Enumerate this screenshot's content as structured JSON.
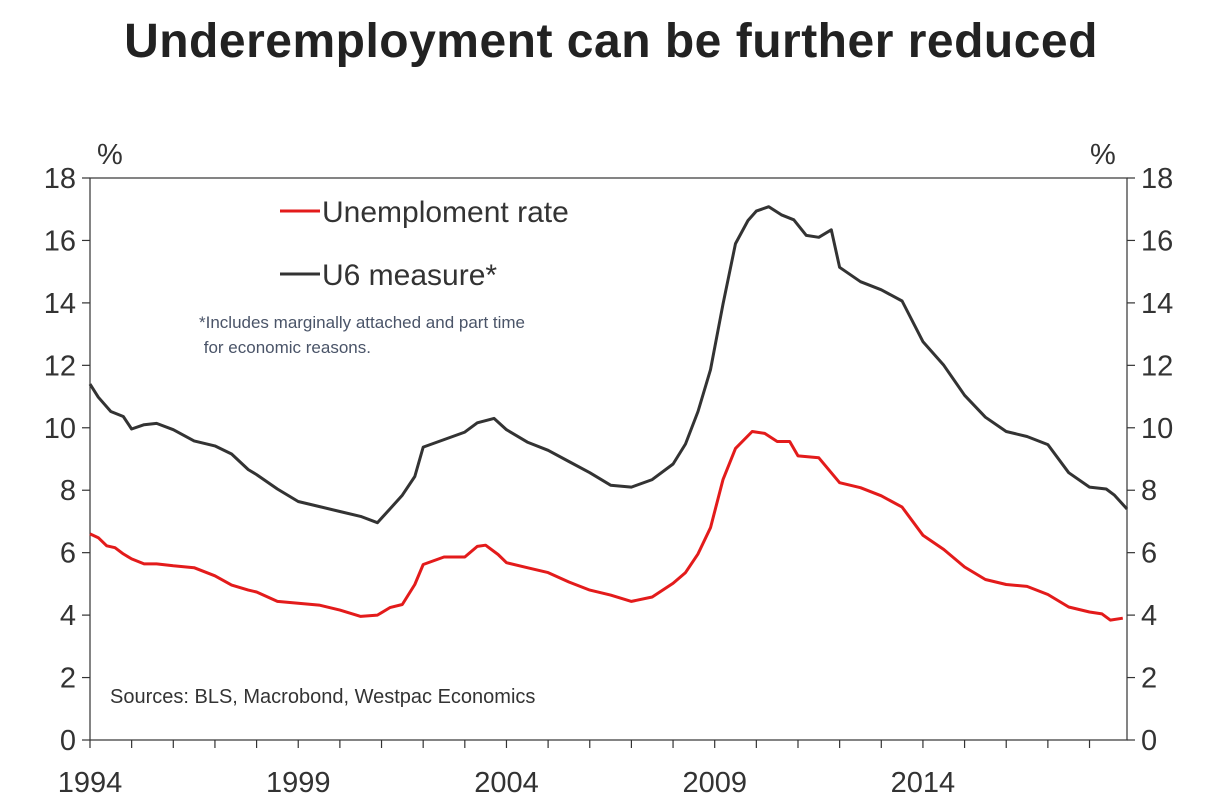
{
  "chart_data": {
    "type": "line",
    "title": "Underemployment can be further reduced",
    "y_unit_left": "%",
    "y_unit_right": "%",
    "ylim": [
      0,
      18
    ],
    "yticks": [
      0,
      2,
      4,
      6,
      8,
      10,
      12,
      14,
      16,
      18
    ],
    "xlim": [
      1994.0,
      2018.9
    ],
    "xticks": [
      1994,
      1999,
      2004,
      2009,
      2014
    ],
    "legend_position": "top-left",
    "note_lines": [
      "*Includes marginally attached and part time",
      " for economic reasons."
    ],
    "source": "Sources: BLS, Macrobond, Westpac Economics",
    "colors": {
      "unemployment": "#e31b1b",
      "u6": "#333333",
      "axis": "#333333"
    },
    "series": [
      {
        "name": "Unemploment rate",
        "key": "unemployment",
        "points": [
          [
            1994.0,
            6.6
          ],
          [
            1994.2,
            6.5
          ],
          [
            1994.4,
            6.2
          ],
          [
            1994.6,
            6.1
          ],
          [
            1994.8,
            6.0
          ],
          [
            1995.0,
            5.8
          ],
          [
            1995.3,
            5.6
          ],
          [
            1995.6,
            5.7
          ],
          [
            1996.0,
            5.6
          ],
          [
            1996.5,
            5.5
          ],
          [
            1997.0,
            5.2
          ],
          [
            1997.4,
            5.0
          ],
          [
            1997.8,
            4.8
          ],
          [
            1998.0,
            4.7
          ],
          [
            1998.5,
            4.5
          ],
          [
            1999.0,
            4.4
          ],
          [
            1999.5,
            4.3
          ],
          [
            2000.0,
            4.1
          ],
          [
            2000.5,
            4.0
          ],
          [
            2000.9,
            4.0
          ],
          [
            2001.2,
            4.2
          ],
          [
            2001.5,
            4.4
          ],
          [
            2001.8,
            5.0
          ],
          [
            2002.0,
            5.6
          ],
          [
            2002.5,
            5.8
          ],
          [
            2003.0,
            5.9
          ],
          [
            2003.3,
            6.2
          ],
          [
            2003.5,
            6.2
          ],
          [
            2003.8,
            6.0
          ],
          [
            2004.0,
            5.7
          ],
          [
            2004.5,
            5.5
          ],
          [
            2005.0,
            5.3
          ],
          [
            2005.5,
            5.1
          ],
          [
            2006.0,
            4.8
          ],
          [
            2006.5,
            4.6
          ],
          [
            2007.0,
            4.5
          ],
          [
            2007.5,
            4.6
          ],
          [
            2008.0,
            5.0
          ],
          [
            2008.3,
            5.3
          ],
          [
            2008.6,
            6.0
          ],
          [
            2008.9,
            6.8
          ],
          [
            2009.2,
            8.3
          ],
          [
            2009.5,
            9.4
          ],
          [
            2009.9,
            9.9
          ],
          [
            2010.2,
            9.8
          ],
          [
            2010.5,
            9.5
          ],
          [
            2010.8,
            9.6
          ],
          [
            2011.0,
            9.1
          ],
          [
            2011.5,
            9.0
          ],
          [
            2012.0,
            8.3
          ],
          [
            2012.5,
            8.1
          ],
          [
            2013.0,
            7.8
          ],
          [
            2013.5,
            7.4
          ],
          [
            2014.0,
            6.6
          ],
          [
            2014.5,
            6.1
          ],
          [
            2015.0,
            5.5
          ],
          [
            2015.5,
            5.2
          ],
          [
            2016.0,
            5.0
          ],
          [
            2016.5,
            4.9
          ],
          [
            2017.0,
            4.6
          ],
          [
            2017.5,
            4.3
          ],
          [
            2018.0,
            4.1
          ],
          [
            2018.3,
            4.0
          ],
          [
            2018.5,
            3.9
          ],
          [
            2018.8,
            3.9
          ]
        ]
      },
      {
        "name": "U6 measure*",
        "key": "u6",
        "points": [
          [
            1994.0,
            11.4
          ],
          [
            1994.2,
            11.0
          ],
          [
            1994.5,
            10.5
          ],
          [
            1994.8,
            10.3
          ],
          [
            1995.0,
            10.0
          ],
          [
            1995.3,
            10.1
          ],
          [
            1995.6,
            10.1
          ],
          [
            1996.0,
            10.0
          ],
          [
            1996.5,
            9.6
          ],
          [
            1997.0,
            9.4
          ],
          [
            1997.4,
            9.1
          ],
          [
            1997.8,
            8.7
          ],
          [
            1998.0,
            8.5
          ],
          [
            1998.5,
            8.0
          ],
          [
            1999.0,
            7.7
          ],
          [
            1999.5,
            7.5
          ],
          [
            2000.0,
            7.3
          ],
          [
            2000.5,
            7.1
          ],
          [
            2000.9,
            7.0
          ],
          [
            2001.2,
            7.4
          ],
          [
            2001.5,
            7.8
          ],
          [
            2001.8,
            8.5
          ],
          [
            2002.0,
            9.4
          ],
          [
            2002.5,
            9.6
          ],
          [
            2003.0,
            9.8
          ],
          [
            2003.3,
            10.2
          ],
          [
            2003.7,
            10.3
          ],
          [
            2004.0,
            9.9
          ],
          [
            2004.5,
            9.6
          ],
          [
            2005.0,
            9.3
          ],
          [
            2005.5,
            8.9
          ],
          [
            2006.0,
            8.5
          ],
          [
            2006.5,
            8.2
          ],
          [
            2007.0,
            8.1
          ],
          [
            2007.5,
            8.3
          ],
          [
            2008.0,
            8.9
          ],
          [
            2008.3,
            9.5
          ],
          [
            2008.6,
            10.5
          ],
          [
            2008.9,
            11.8
          ],
          [
            2009.2,
            14.0
          ],
          [
            2009.5,
            15.9
          ],
          [
            2009.8,
            16.6
          ],
          [
            2010.0,
            17.0
          ],
          [
            2010.3,
            17.1
          ],
          [
            2010.6,
            16.8
          ],
          [
            2010.9,
            16.6
          ],
          [
            2011.2,
            16.2
          ],
          [
            2011.5,
            16.1
          ],
          [
            2011.8,
            16.3
          ],
          [
            2012.0,
            15.2
          ],
          [
            2012.5,
            14.7
          ],
          [
            2013.0,
            14.4
          ],
          [
            2013.5,
            14.0
          ],
          [
            2014.0,
            12.8
          ],
          [
            2014.5,
            12.0
          ],
          [
            2015.0,
            11.0
          ],
          [
            2015.5,
            10.4
          ],
          [
            2016.0,
            9.9
          ],
          [
            2016.5,
            9.7
          ],
          [
            2017.0,
            9.4
          ],
          [
            2017.5,
            8.6
          ],
          [
            2018.0,
            8.1
          ],
          [
            2018.4,
            8.0
          ],
          [
            2018.6,
            7.9
          ],
          [
            2018.9,
            7.4
          ]
        ]
      }
    ]
  }
}
